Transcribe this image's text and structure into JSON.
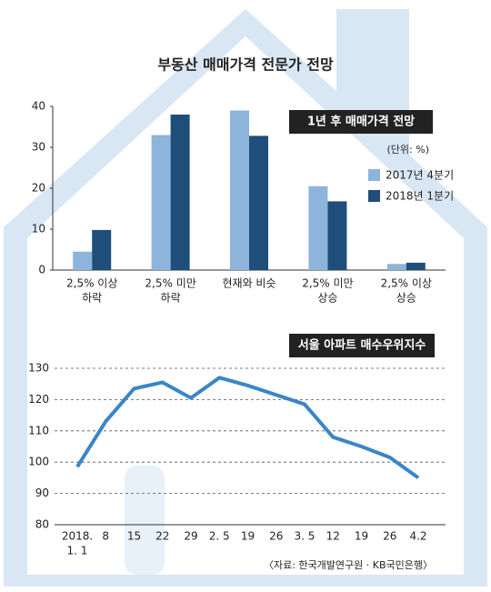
{
  "title": "부동산 매매가격 전문가 전망",
  "source": "〈자료: 한국개발연구원 · KB국민은행〉",
  "chart_data": [
    {
      "type": "bar",
      "title": "1년 후 매매가격 전망",
      "unit": "(단위: %)",
      "categories": [
        [
          "2,5% 이상",
          "하락"
        ],
        [
          "2,5% 미만",
          "하락"
        ],
        [
          "현재와 비슷"
        ],
        [
          "2,5% 미만",
          "상승"
        ],
        [
          "2,5% 이상",
          "상승"
        ]
      ],
      "series": [
        {
          "name": "2017년 4분기",
          "color": "#8db4da",
          "values": [
            4.5,
            33,
            39,
            20.5,
            1.5
          ]
        },
        {
          "name": "2018년 1분기",
          "color": "#1f4e7a",
          "values": [
            9.8,
            38,
            32.8,
            16.8,
            1.8
          ]
        }
      ],
      "ylim": [
        0,
        40
      ],
      "yticks": [
        0,
        10,
        20,
        30,
        40
      ]
    },
    {
      "type": "line",
      "title": "서울 아파트 매수우위지수",
      "categories": [
        [
          "2018.",
          "1. 1"
        ],
        "8",
        "15",
        "22",
        "29",
        "2. 5",
        "19",
        "26",
        "3. 5",
        "12",
        "19",
        "26",
        "4.2"
      ],
      "values": [
        98.5,
        113,
        123.5,
        125.5,
        120.5,
        127,
        124.5,
        121.5,
        118.5,
        108,
        105,
        101.5,
        95
      ],
      "color": "#3a86c8",
      "ylim": [
        80,
        130
      ],
      "yticks": [
        80,
        90,
        100,
        110,
        120,
        130
      ],
      "grid": true
    }
  ]
}
